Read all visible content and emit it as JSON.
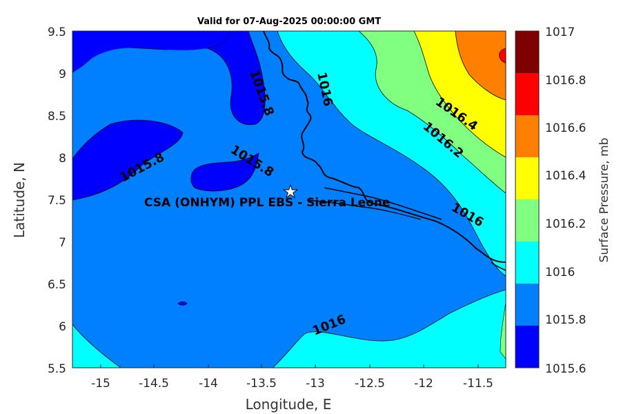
{
  "map": {
    "title": "Valid for 07-Aug-2025 00:00:00 GMT",
    "x_axis_label": "Longitude, E",
    "y_axis_label": "Latitude, N",
    "x_ticks": [
      "-15",
      "-14.5",
      "-14",
      "-13.5",
      "-13",
      "-12.5",
      "-12",
      "-11.5"
    ],
    "y_ticks": [
      "9.5",
      "9",
      "8.5",
      "8",
      "7.5",
      "7",
      "6.5",
      "6",
      "5.5"
    ],
    "x_range": [
      -15.25,
      -11.25
    ],
    "y_range": [
      5.5,
      9.5
    ],
    "site_label": "CSA (ONHYM) PPL EBS  - Sierra Leone",
    "site_marker": "star-icon",
    "contour_labels": [
      "1015.8",
      "1015.8",
      "1015.8",
      "1016",
      "1016",
      "1016",
      "1016.4",
      "1016.2"
    ]
  },
  "colorbar": {
    "label": "Surface Pressure, mb",
    "ticks": [
      "1017",
      "1016.8",
      "1016.6",
      "1016.4",
      "1016.2",
      "1016",
      "1015.8",
      "1015.6"
    ],
    "colors": [
      "#7f0000",
      "#ff0000",
      "#ff8000",
      "#ffff00",
      "#80ff80",
      "#00ffff",
      "#0080ff",
      "#0000ff"
    ]
  }
}
